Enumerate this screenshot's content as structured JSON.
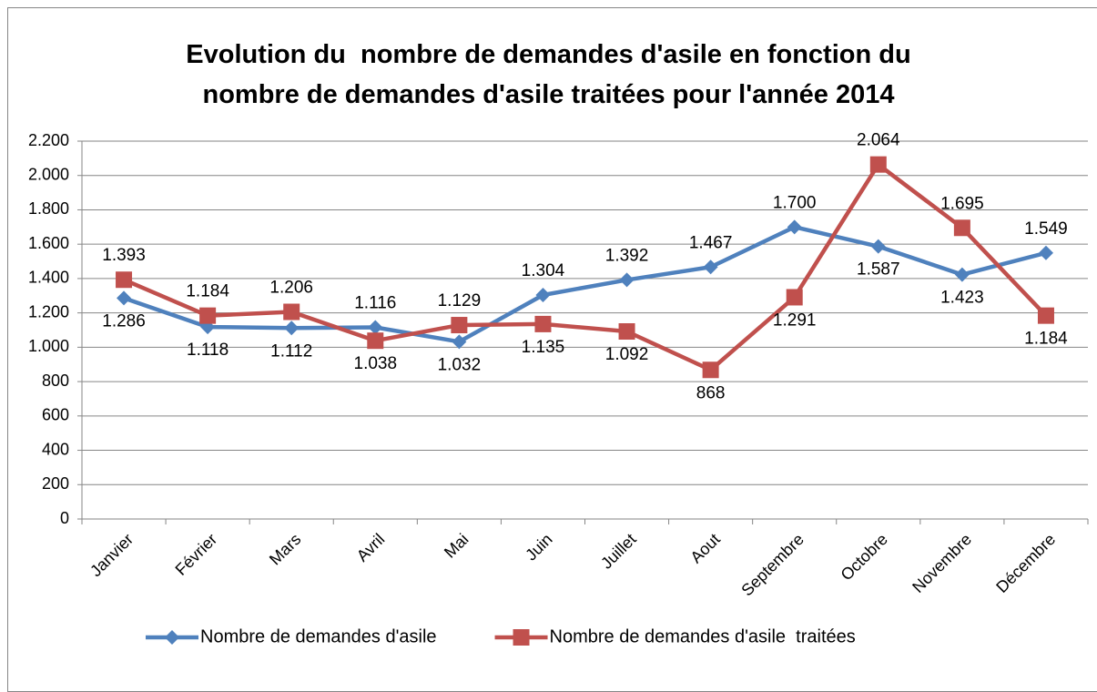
{
  "chart_data": {
    "type": "line",
    "title": "Evolution du  nombre de demandes d'asile en fonction du\nnombre de demandes d'asile traitées pour l'année 2014",
    "categories": [
      "Janvier",
      "Février",
      "Mars",
      "Avril",
      "Mai",
      "Juin",
      "Juillet",
      "Aout",
      "Septembre",
      "Octobre",
      "Novembre",
      "Décembre"
    ],
    "series": [
      {
        "name": "Nombre de demandes d'asile",
        "color": "#4f81bd",
        "label_color": "#1f4e79",
        "marker": "diamond",
        "values": [
          1286,
          1118,
          1112,
          1116,
          1032,
          1304,
          1392,
          1467,
          1700,
          1587,
          1423,
          1549
        ],
        "value_labels": [
          "1.286",
          "1.118",
          "1.112",
          "1.116",
          "1.032",
          "1.304",
          "1.392",
          "1.467",
          "1.700",
          "1.587",
          "1.423",
          "1.549"
        ]
      },
      {
        "name": "Nombre de demandes d'asile  traitées",
        "color": "#c0504d",
        "label_color": "#c00000",
        "marker": "square",
        "values": [
          1393,
          1184,
          1206,
          1038,
          1129,
          1135,
          1092,
          868,
          1291,
          2064,
          1695,
          1184
        ],
        "value_labels": [
          "1.393",
          "1.184",
          "1.206",
          "1.038",
          "1.129",
          "1.135",
          "1.092",
          "868",
          "1.291",
          "2.064",
          "1.695",
          "1.184"
        ]
      }
    ],
    "ylim": [
      0,
      2200
    ],
    "yticks": [
      0,
      200,
      400,
      600,
      800,
      {
        "value": 1000,
        "label": "1.000"
      },
      {
        "value": 1200,
        "label": "1.200"
      },
      {
        "value": 1400,
        "label": "1.400"
      },
      {
        "value": 1600,
        "label": "1.600"
      },
      {
        "value": 1800,
        "label": "1.800"
      },
      {
        "value": 2000,
        "label": "2.000"
      },
      {
        "value": 2200,
        "label": "2.200"
      }
    ],
    "grid": true,
    "legend": "bottom"
  }
}
